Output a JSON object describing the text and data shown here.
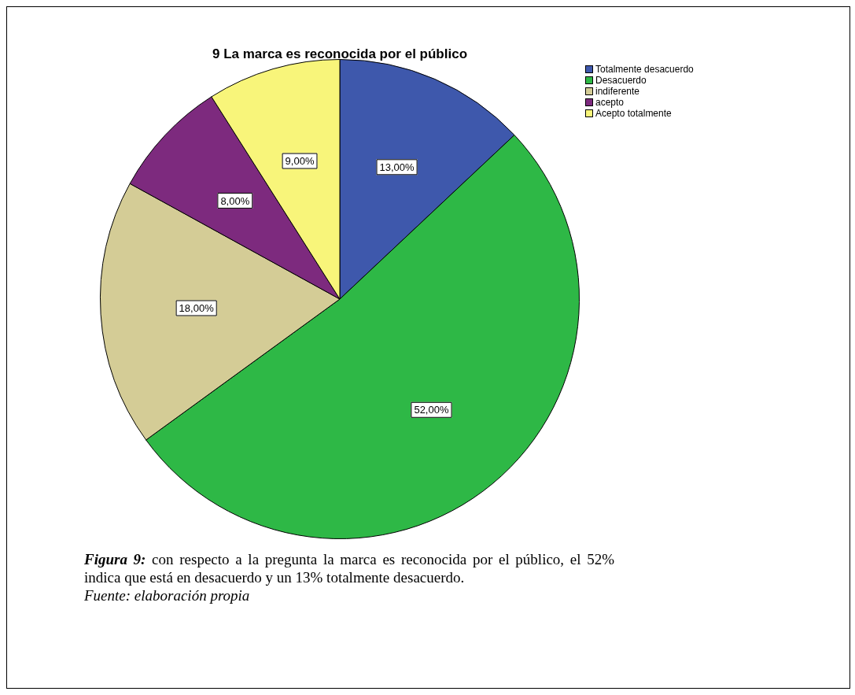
{
  "chart_data": {
    "type": "pie",
    "title": "9 La marca es reconocida por el público",
    "categories": [
      "Totalmente desacuerdo",
      "Desacuerdo",
      "indiferente",
      "acepto",
      "Acepto totalmente"
    ],
    "values": [
      13,
      52,
      18,
      8,
      9
    ],
    "colors": [
      "#3e58ac",
      "#2eb846",
      "#d4cc96",
      "#7d2a7e",
      "#f8f57a"
    ],
    "value_labels": [
      "13,00%",
      "52,00%",
      "18,00%",
      "8,00%",
      "9,00%"
    ],
    "legend": "top right",
    "annotations": [
      "Figura 9: con respecto a la pregunta la marca es reconocida por el público, el 52% indica que está en desacuerdo y un 13% totalmente desacuerdo.",
      "Fuente: elaboración propia"
    ]
  }
}
